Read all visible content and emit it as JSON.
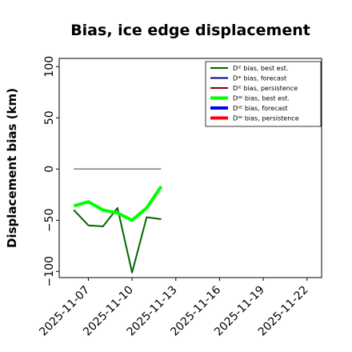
{
  "chart_data": {
    "type": "line",
    "title": "Bias, ice edge displacement",
    "xlabel": "",
    "ylabel": "Displacement bias (km)",
    "xlim": [
      "2025-11-05",
      "2025-11-23"
    ],
    "ylim": [
      -106,
      108
    ],
    "x_ticks": [
      "2025-11-07",
      "2025-11-10",
      "2025-11-13",
      "2025-11-16",
      "2025-11-19",
      "2025-11-22"
    ],
    "x_tick_colors": [
      "#000000",
      "#000000",
      "#228b22",
      "#000000",
      "#000000",
      "#000000"
    ],
    "y_ticks": [
      100,
      50,
      0,
      -50,
      -100
    ],
    "y_tick_labels": [
      "100",
      "50",
      "0",
      "−50",
      "−100"
    ],
    "legend_position": "upper-right",
    "series": [
      {
        "name": "Dᴵᴱ bias, best est.",
        "color": "#006400",
        "width": 2,
        "points": [
          [
            "2025-11-06",
            -40
          ],
          [
            "2025-11-07",
            -55
          ],
          [
            "2025-11-08",
            -56
          ],
          [
            "2025-11-09",
            -38
          ],
          [
            "2025-11-10",
            -101
          ],
          [
            "2025-11-11",
            -47
          ],
          [
            "2025-11-12",
            -49
          ]
        ]
      },
      {
        "name": "Dᴵᴱ bias, forecast",
        "color": "#00008b",
        "width": 2,
        "points": []
      },
      {
        "name": "Dᴵᴱ bias, persistence",
        "color": "#8b0000",
        "width": 2,
        "points": []
      },
      {
        "name": "Dᴵᴵᴱ bias, best est.",
        "color": "#00ff00",
        "width": 4,
        "points": [
          [
            "2025-11-06",
            -36
          ],
          [
            "2025-11-07",
            -32
          ],
          [
            "2025-11-08",
            -40
          ],
          [
            "2025-11-09",
            -43
          ],
          [
            "2025-11-10",
            -50
          ],
          [
            "2025-11-11",
            -38
          ],
          [
            "2025-11-12",
            -17
          ]
        ]
      },
      {
        "name": "Dᴵᴵᴱ bias, forecast",
        "color": "#0000ff",
        "width": 4,
        "points": []
      },
      {
        "name": "Dᴵᴵᴱ bias, persistence",
        "color": "#ff0000",
        "width": 4,
        "points": []
      }
    ],
    "reference_line": {
      "color": "#808080",
      "points": [
        [
          "2025-11-06",
          0
        ],
        [
          "2025-11-12",
          0
        ]
      ]
    }
  }
}
